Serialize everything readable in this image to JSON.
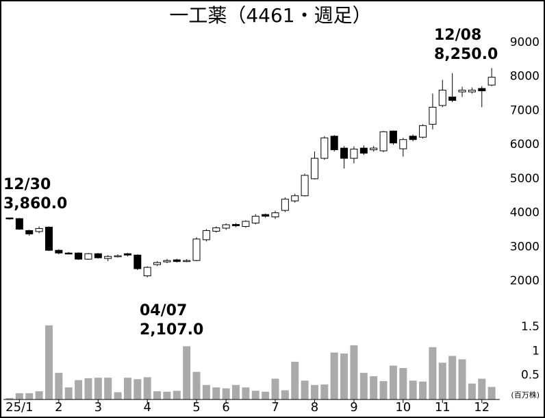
{
  "chart_data": {
    "type": "candlestick",
    "title": "一工薬（4461・週足）",
    "categories": [
      null,
      "25/1",
      null,
      null,
      null,
      "2",
      null,
      null,
      null,
      "3",
      null,
      null,
      null,
      null,
      "4",
      null,
      null,
      null,
      null,
      "5",
      null,
      null,
      "6",
      null,
      null,
      null,
      null,
      "7",
      null,
      null,
      null,
      "8",
      null,
      null,
      null,
      "9",
      null,
      null,
      null,
      null,
      "10",
      null,
      null,
      null,
      "11",
      null,
      null,
      null,
      "12",
      null
    ],
    "open": [
      3850,
      3830,
      3480,
      3450,
      3580,
      2900,
      2820,
      2820,
      2640,
      2800,
      2660,
      2720,
      2800,
      2760,
      2150,
      2480,
      2560,
      2620,
      2580,
      2600,
      3210,
      3460,
      3550,
      3660,
      3600,
      3700,
      3950,
      3880,
      4070,
      4350,
      4500,
      5000,
      5600,
      6250,
      5900,
      5600,
      5900,
      5850,
      5820,
      6400,
      5880,
      6250,
      6220,
      6600,
      7150,
      7400,
      7550,
      7550,
      7650,
      7750
    ],
    "close": [
      3830,
      3520,
      3380,
      3540,
      2900,
      2820,
      2810,
      2640,
      2800,
      2680,
      2720,
      2740,
      2760,
      2360,
      2400,
      2540,
      2600,
      2570,
      2600,
      3230,
      3480,
      3560,
      3650,
      3620,
      3750,
      3900,
      3900,
      4000,
      4400,
      4500,
      5100,
      5600,
      6200,
      5850,
      5600,
      5870,
      5750,
      5900,
      6380,
      6050,
      6150,
      6150,
      6560,
      7100,
      7600,
      7300,
      7600,
      7600,
      7580,
      7980
    ],
    "high": [
      3860,
      3850,
      3500,
      3600,
      3600,
      2930,
      2850,
      2840,
      2820,
      2820,
      2760,
      2780,
      2820,
      2780,
      2430,
      2580,
      2640,
      2650,
      2640,
      3280,
      3520,
      3600,
      3690,
      3700,
      3780,
      3960,
      3980,
      4060,
      4450,
      4560,
      5150,
      5800,
      6250,
      6280,
      5960,
      5950,
      5980,
      5960,
      6400,
      6420,
      6200,
      6300,
      6600,
      7500,
      7900,
      8100,
      7700,
      7680,
      7720,
      8250
    ],
    "low": [
      3800,
      3500,
      3330,
      3400,
      2880,
      2780,
      2780,
      2620,
      2620,
      2660,
      2580,
      2690,
      2720,
      2320,
      2107,
      2440,
      2520,
      2540,
      2550,
      2580,
      3160,
      3420,
      3500,
      3580,
      3560,
      3660,
      3860,
      3820,
      4020,
      4300,
      4480,
      4980,
      5560,
      5800,
      5300,
      5450,
      5700,
      5800,
      5780,
      6000,
      5650,
      6100,
      6180,
      6450,
      7100,
      7250,
      7400,
      7500,
      7100,
      7720
    ],
    "up_color": "#ffffff",
    "down_color": "#000000",
    "ylim": [
      2000,
      9000
    ],
    "yticks": [
      2000,
      3000,
      4000,
      5000,
      6000,
      7000,
      8000,
      9000
    ],
    "volume": {
      "values": [
        0.03,
        0.13,
        0.13,
        0.17,
        1.53,
        0.55,
        0.25,
        0.4,
        0.44,
        0.45,
        0.45,
        0.15,
        0.45,
        0.42,
        0.46,
        0.17,
        0.16,
        0.18,
        1.1,
        0.57,
        0.3,
        0.25,
        0.23,
        0.3,
        0.25,
        0.18,
        0.16,
        0.43,
        0.19,
        0.78,
        0.39,
        0.3,
        0.31,
        0.97,
        0.95,
        1.12,
        0.55,
        0.48,
        0.38,
        0.7,
        0.65,
        0.39,
        0.37,
        1.08,
        0.76,
        0.9,
        0.83,
        0.33,
        0.43,
        0.26
      ],
      "color": "#aaaaaa",
      "ylim": [
        0,
        1.5
      ],
      "yticks": [
        0.5,
        1,
        1.5
      ],
      "unit": "(百万株)"
    },
    "annotations": [
      {
        "text": [
          "12/30",
          "3,860.0"
        ]
      },
      {
        "text": [
          "04/07",
          "2,107.0"
        ]
      },
      {
        "text": [
          "12/08",
          "8,250.0"
        ]
      }
    ]
  }
}
